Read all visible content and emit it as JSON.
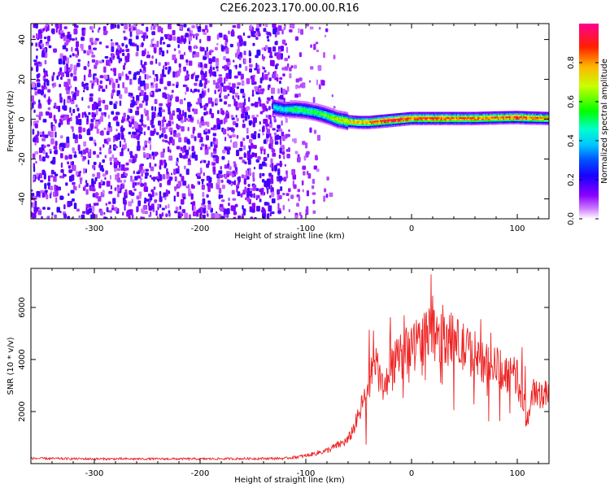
{
  "title": "C2E6.2023.170.00.00.R16",
  "chart_data": [
    {
      "type": "heatmap",
      "xlabel": "Height of straight line (km)",
      "ylabel": "Frequency (Hz)",
      "xlim": [
        -360,
        130
      ],
      "ylim": [
        -50,
        48
      ],
      "x_ticks": [
        -300,
        -200,
        -100,
        0,
        100
      ],
      "y_ticks": [
        -40,
        -20,
        0,
        20,
        40
      ],
      "colorbar": {
        "label": "Normalized spectral amplitude",
        "range": [
          0,
          1
        ],
        "ticks": [
          0.0,
          0.2,
          0.4,
          0.6,
          0.8
        ],
        "colormap": [
          "#ffffff",
          "#8a00ff",
          "#2a00ff",
          "#0000ff",
          "#00bfff",
          "#00ffff",
          "#00ff00",
          "#ffff00",
          "#ff8000",
          "#ff0000",
          "#ff0080"
        ]
      },
      "ridge": {
        "x": [
          -130,
          -120,
          -110,
          -100,
          -90,
          -80,
          -70,
          -60,
          -50,
          -40,
          -30,
          -20,
          -10,
          0,
          20,
          40,
          60,
          80,
          100,
          110,
          130
        ],
        "frequency": [
          6,
          5,
          5,
          4.5,
          3.5,
          2,
          0,
          -1,
          -1.5,
          -1.5,
          -1,
          -0.5,
          0,
          0.5,
          0.5,
          0.5,
          0.5,
          0.8,
          1,
          0.8,
          0.5
        ],
        "peak_amplitude": [
          0.45,
          0.45,
          0.55,
          0.55,
          0.55,
          0.6,
          0.7,
          0.75,
          0.8,
          0.85,
          0.9,
          0.95,
          0.95,
          0.9,
          0.9,
          0.9,
          0.85,
          0.85,
          0.9,
          0.85,
          0.8
        ]
      },
      "background_noise": {
        "x_range": [
          -360,
          -70
        ],
        "frequency_range": [
          -50,
          48
        ],
        "amplitude_range": [
          0.05,
          0.2
        ]
      }
    },
    {
      "type": "line",
      "xlabel": "Height of straight line (km)",
      "ylabel": "SNR (10 * v/v)",
      "xlim": [
        -360,
        130
      ],
      "ylim": [
        0,
        7500
      ],
      "x_ticks": [
        -300,
        -200,
        -100,
        0,
        100
      ],
      "y_ticks": [
        2000,
        4000,
        6000
      ],
      "color": "#ee2222",
      "series": [
        {
          "x": [
            -360,
            -300,
            -200,
            -120,
            -100,
            -80,
            -60,
            -50,
            -45,
            -40,
            -35,
            -30,
            -25,
            -20,
            -15,
            -10,
            -5,
            0,
            10,
            20,
            30,
            40,
            50,
            60,
            70,
            80,
            90,
            100,
            105,
            110,
            115,
            120,
            130
          ],
          "values": [
            200,
            180,
            180,
            200,
            300,
            500,
            900,
            1800,
            2500,
            3200,
            3800,
            3300,
            2800,
            3500,
            3900,
            4100,
            4300,
            4500,
            4800,
            4950,
            5000,
            4700,
            4400,
            4200,
            3900,
            3700,
            3500,
            3300,
            2400,
            1700,
            2900,
            2700,
            2600
          ]
        }
      ]
    }
  ]
}
